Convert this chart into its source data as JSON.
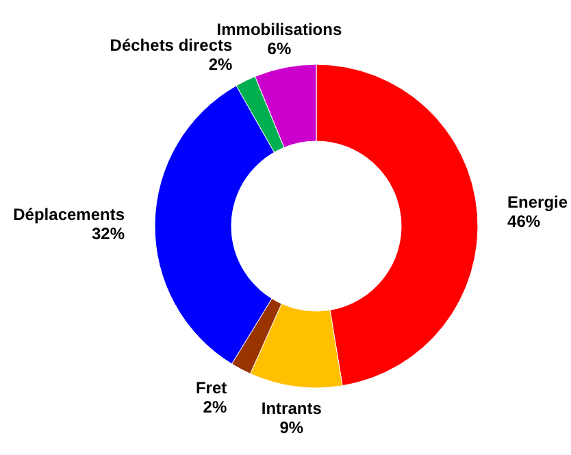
{
  "chart_data": {
    "type": "donut",
    "categories": [
      "Energie",
      "Intrants",
      "Fret",
      "Déplacements",
      "Déchets directs",
      "Immobilisations"
    ],
    "values": [
      46,
      9,
      2,
      32,
      2,
      6
    ],
    "colors": [
      "#ff0000",
      "#ffc000",
      "#993300",
      "#0000ff",
      "#00b050",
      "#cc00cc"
    ],
    "value_labels": [
      "46%",
      "9%",
      "2%",
      "32%",
      "2%",
      "6%"
    ]
  }
}
